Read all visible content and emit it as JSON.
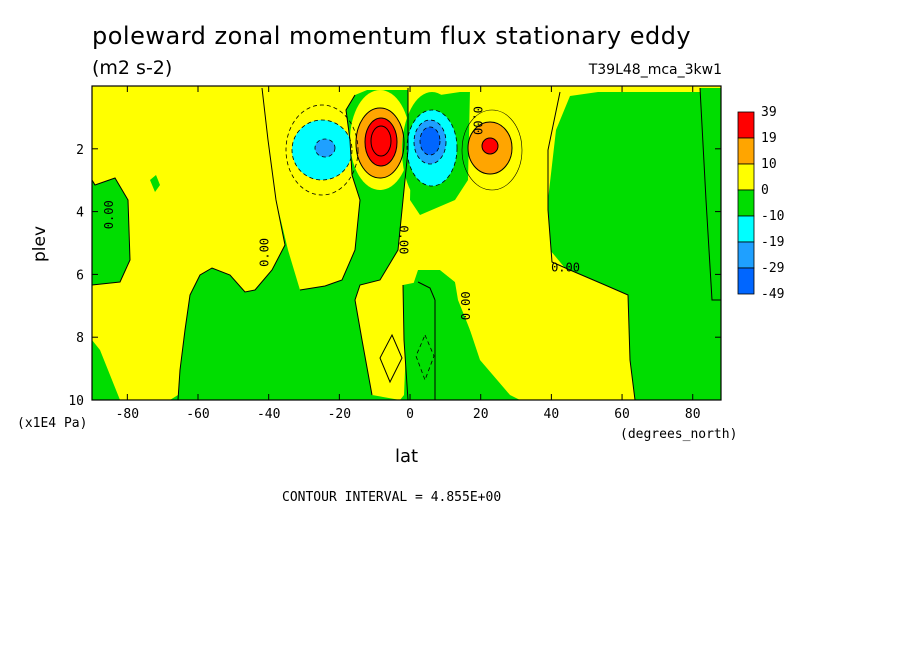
{
  "header": {
    "title": "poleward zonal momentum flux stationary eddy",
    "units": "(m2 s-2)",
    "dataset": "T39L48_mca_3kw1"
  },
  "axes": {
    "ylabel": "plev",
    "yunits": "(x1E4 Pa)",
    "xlabel": "lat",
    "xunits": "(degrees_north)"
  },
  "footer": {
    "contour_interval": "CONTOUR INTERVAL = 4.855E+00"
  },
  "colors": {
    "red": "#ff0000",
    "orange": "#ffa500",
    "yellow": "#ffff00",
    "green": "#00dd00",
    "cyan": "#00ffff",
    "lightblue": "#1fa0ff",
    "blue": "#1060ff",
    "darkblue": "#0000ff"
  },
  "chart_data": {
    "type": "heatmap",
    "title": "poleward zonal momentum flux stationary eddy",
    "xlabel": "lat",
    "ylabel": "plev",
    "xlim": [
      -90,
      88
    ],
    "ylim": [
      10,
      0
    ],
    "x_ticks": [
      "-80",
      "-60",
      "-40",
      "-20",
      "0",
      "20",
      "40",
      "60",
      "80"
    ],
    "x_tick_values": [
      -80,
      -60,
      -40,
      -20,
      0,
      20,
      40,
      60,
      80
    ],
    "y_ticks": [
      "2",
      "4",
      "6",
      "8",
      "10"
    ],
    "y_tick_values": [
      2,
      4,
      6,
      8,
      10
    ],
    "colorbar": {
      "labels": [
        "39",
        "19",
        "10",
        "0",
        "-10",
        "-19",
        "-29",
        "-49"
      ],
      "colors": [
        "#ff0000",
        "#ffa500",
        "#ffff00",
        "#00dd00",
        "#00ffff",
        "#1fa0ff",
        "#0066ff"
      ]
    },
    "contour_labels": [
      {
        "text": "0.00",
        "lat": -84,
        "plev": 4.1,
        "angle": -90
      },
      {
        "text": "0.00",
        "lat": -40,
        "plev": 5.3,
        "angle": -90
      },
      {
        "text": "0.00",
        "lat": -3,
        "plev": 4.9,
        "angle": 90
      },
      {
        "text": "0.00",
        "lat": 17,
        "plev": 7.0,
        "angle": -90
      },
      {
        "text": "0.00",
        "lat": 18,
        "plev": 1.1,
        "angle": 90
      },
      {
        "text": "0.00",
        "lat": 44,
        "plev": 5.9,
        "angle": 0
      }
    ]
  }
}
